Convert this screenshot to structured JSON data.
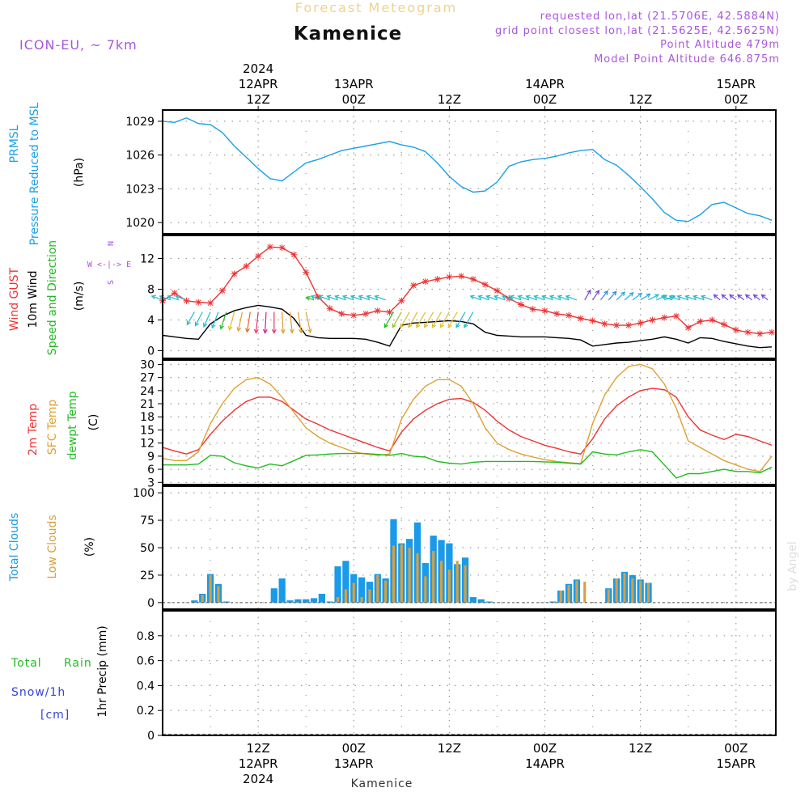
{
  "header": {
    "product": "Forecast Meteogram",
    "location": "Kamenice",
    "model": "ICON-EU, ~ 7km",
    "requested": "requested lon,lat (21.5706E, 42.5884N)",
    "gridpoint": "grid point closest lon,lat (21.5625E, 42.5625N)",
    "point_alt": "Point Altitude 479m",
    "model_alt": "Model Point Altitude 646.875m",
    "bottom_label": "Kamenice",
    "watermark": "by Angel"
  },
  "colors": {
    "pressure": "#1aa0e8",
    "gust": "#ee3333",
    "wind": "#000000",
    "dir": "#22bb22",
    "temp": "#ee3333",
    "sfc": "#e0a030",
    "dewpt": "#22bb22",
    "total_clouds": "#1a9ae8",
    "low_clouds": "#d8a040",
    "purple": "#aa55dd",
    "rain": "#22bb22",
    "snow": "#3344dd"
  },
  "top_axis": [
    {
      "x": 12,
      "lines": [
        "2024",
        "12APR",
        "12Z"
      ]
    },
    {
      "x": 24,
      "lines": [
        "13APR",
        "00Z"
      ]
    },
    {
      "x": 36,
      "lines": [
        "12Z"
      ]
    },
    {
      "x": 48,
      "lines": [
        "14APR",
        "00Z"
      ]
    },
    {
      "x": 60,
      "lines": [
        "12Z"
      ]
    },
    {
      "x": 72,
      "lines": [
        "15APR",
        "00Z"
      ]
    }
  ],
  "bottom_axis": [
    {
      "x": 12,
      "lines": [
        "12Z",
        "12APR",
        "2024"
      ]
    },
    {
      "x": 24,
      "lines": [
        "00Z",
        "13APR"
      ]
    },
    {
      "x": 36,
      "lines": [
        "12Z"
      ]
    },
    {
      "x": 48,
      "lines": [
        "00Z",
        "14APR"
      ]
    },
    {
      "x": 60,
      "lines": [
        "12Z"
      ]
    },
    {
      "x": 72,
      "lines": [
        "00Z",
        "15APR"
      ]
    }
  ],
  "chart_data": [
    {
      "type": "line",
      "panel": "pressure",
      "ylabel": [
        "PRMSL",
        "Pressure Reduced to MSL",
        "(hPa)"
      ],
      "ylim": [
        1019,
        1030
      ],
      "yticks": [
        1020,
        1023,
        1026,
        1029
      ],
      "x_unit": "hours from 12APR 00Z",
      "xlim": [
        0,
        77
      ],
      "series": [
        {
          "name": "PRMSL",
          "x": [
            0,
            1.5,
            3,
            4.5,
            6,
            7.5,
            9,
            10.5,
            12,
            13.5,
            15,
            16.5,
            18,
            19.5,
            21,
            22.5,
            24,
            25.5,
            27,
            28.5,
            30,
            31.5,
            33,
            34.5,
            36,
            37.5,
            39,
            40.5,
            42,
            43.5,
            45,
            46.5,
            48,
            49.5,
            51,
            52.5,
            54,
            55.5,
            57,
            58.5,
            60,
            61.5,
            63,
            64.5,
            66,
            67.5,
            69,
            70.5,
            72,
            73.5,
            75,
            76.5
          ],
          "values": [
            1029.0,
            1028.9,
            1029.3,
            1028.8,
            1028.7,
            1028.0,
            1026.8,
            1025.8,
            1024.8,
            1023.9,
            1023.7,
            1024.5,
            1025.3,
            1025.6,
            1026.0,
            1026.4,
            1026.6,
            1026.8,
            1027.0,
            1027.2,
            1026.9,
            1026.7,
            1026.3,
            1025.3,
            1024.1,
            1023.2,
            1022.7,
            1022.8,
            1023.6,
            1025.0,
            1025.4,
            1025.6,
            1025.7,
            1025.9,
            1026.2,
            1026.4,
            1026.5,
            1025.6,
            1025.1,
            1024.2,
            1023.2,
            1022.1,
            1020.9,
            1020.2,
            1020.1,
            1020.7,
            1021.6,
            1021.8,
            1021.3,
            1020.8,
            1020.6,
            1020.2
          ]
        }
      ]
    },
    {
      "type": "line",
      "panel": "wind",
      "ylabel": [
        "Wind GUST",
        "10m Wind",
        "Speed and Direction",
        "(m/s)"
      ],
      "compass": [
        "N",
        "W <-|-> E",
        "S"
      ],
      "ylim": [
        -1,
        15
      ],
      "yticks": [
        0,
        4,
        8,
        12
      ],
      "series": [
        {
          "name": "Wind GUST",
          "x": [
            0,
            1.5,
            3,
            4.5,
            6,
            7.5,
            9,
            10.5,
            12,
            13.5,
            15,
            16.5,
            18,
            19.5,
            21,
            22.5,
            24,
            25.5,
            27,
            28.5,
            30,
            31.5,
            33,
            34.5,
            36,
            37.5,
            39,
            40.5,
            42,
            43.5,
            45,
            46.5,
            48,
            49.5,
            51,
            52.5,
            54,
            55.5,
            57,
            58.5,
            60,
            61.5,
            63,
            64.5,
            66,
            67.5,
            69,
            70.5,
            72,
            73.5,
            75,
            76.5
          ],
          "values": [
            6.5,
            7.5,
            6.5,
            6.3,
            6.2,
            7.8,
            10.0,
            11.0,
            12.3,
            13.5,
            13.4,
            12.5,
            10.2,
            7.0,
            5.5,
            4.8,
            4.6,
            4.8,
            5.2,
            5.0,
            6.5,
            8.5,
            9.0,
            9.3,
            9.6,
            9.7,
            9.3,
            8.6,
            7.8,
            6.8,
            6.0,
            5.4,
            5.2,
            4.8,
            4.6,
            4.2,
            3.9,
            3.5,
            3.3,
            3.3,
            3.6,
            4.0,
            4.3,
            4.5,
            3.0,
            3.8,
            4.0,
            3.4,
            2.7,
            2.4,
            2.2,
            2.4
          ]
        },
        {
          "name": "10m Wind",
          "x": [
            0,
            1.5,
            3,
            4.5,
            6,
            7.5,
            9,
            10.5,
            12,
            13.5,
            15,
            16.5,
            18,
            19.5,
            21,
            22.5,
            24,
            25.5,
            27,
            28.5,
            30,
            31.5,
            33,
            34.5,
            36,
            37.5,
            39,
            40.5,
            42,
            43.5,
            45,
            46.5,
            48,
            49.5,
            51,
            52.5,
            54,
            55.5,
            57,
            58.5,
            60,
            61.5,
            63,
            64.5,
            66,
            67.5,
            69,
            70.5,
            72,
            73.5,
            75,
            76.5
          ],
          "values": [
            2.0,
            1.8,
            1.6,
            1.5,
            3.5,
            4.5,
            5.2,
            5.6,
            5.9,
            5.7,
            5.4,
            4.2,
            2.0,
            1.7,
            1.6,
            1.6,
            1.6,
            1.5,
            1.1,
            0.6,
            3.3,
            3.6,
            3.7,
            3.8,
            3.9,
            3.8,
            3.5,
            2.4,
            2.0,
            1.9,
            1.8,
            1.8,
            1.8,
            1.7,
            1.6,
            1.4,
            0.6,
            0.8,
            1.0,
            1.1,
            1.3,
            1.5,
            1.8,
            1.5,
            1.0,
            1.7,
            1.6,
            1.2,
            0.9,
            0.6,
            0.4,
            0.5
          ]
        }
      ]
    },
    {
      "type": "line",
      "panel": "temperature",
      "ylabel": [
        "2m Temp",
        "SFC Temp",
        "dewpt Temp",
        "(C)"
      ],
      "ylim": [
        2.5,
        31
      ],
      "yticks": [
        3,
        6,
        9,
        12,
        15,
        18,
        21,
        24,
        27,
        30
      ],
      "series": [
        {
          "name": "2m Temp",
          "x": [
            0,
            1.5,
            3,
            4.5,
            6,
            7.5,
            9,
            10.5,
            12,
            13.5,
            15,
            16.5,
            18,
            19.5,
            21,
            22.5,
            24,
            25.5,
            27,
            28.5,
            30,
            31.5,
            33,
            34.5,
            36,
            37.5,
            39,
            40.5,
            42,
            43.5,
            45,
            46.5,
            48,
            49.5,
            51,
            52.5,
            54,
            55.5,
            57,
            58.5,
            60,
            61.5,
            63,
            64.5,
            66,
            67.5,
            69,
            70.5,
            72,
            73.5,
            75,
            76.5
          ],
          "values": [
            11.0,
            10.2,
            9.5,
            10.5,
            14.0,
            17.0,
            19.5,
            21.5,
            22.5,
            22.5,
            21.5,
            19.5,
            17.5,
            16.3,
            15.0,
            14.0,
            13.0,
            12.0,
            11.0,
            10.2,
            14.5,
            17.5,
            19.5,
            21.0,
            22.0,
            22.2,
            21.3,
            19.5,
            17.0,
            15.0,
            13.5,
            12.5,
            11.5,
            10.8,
            10.0,
            9.5,
            13.0,
            17.5,
            20.5,
            22.5,
            24.0,
            24.5,
            24.2,
            22.5,
            18.0,
            15.0,
            13.8,
            12.8,
            14.0,
            13.5,
            12.5,
            11.5
          ]
        },
        {
          "name": "SFC Temp",
          "x": [
            0,
            1.5,
            3,
            4.5,
            6,
            7.5,
            9,
            10.5,
            12,
            13.5,
            15,
            16.5,
            18,
            19.5,
            21,
            22.5,
            24,
            25.5,
            27,
            28.5,
            30,
            31.5,
            33,
            34.5,
            36,
            37.5,
            39,
            40.5,
            42,
            43.5,
            45,
            46.5,
            48,
            49.5,
            51,
            52.5,
            54,
            55.5,
            57,
            58.5,
            60,
            61.5,
            63,
            64.5,
            66,
            67.5,
            69,
            70.5,
            72,
            73.5,
            75,
            76.5
          ],
          "values": [
            8.5,
            8.0,
            8.0,
            10.0,
            16.5,
            21.0,
            24.5,
            26.5,
            27.0,
            25.5,
            22.5,
            19.0,
            15.5,
            13.5,
            12.0,
            11.0,
            10.0,
            9.5,
            9.2,
            9.5,
            17.5,
            22.0,
            25.0,
            26.5,
            26.5,
            25.0,
            21.0,
            15.5,
            12.0,
            10.5,
            9.5,
            8.8,
            8.2,
            7.8,
            7.5,
            7.3,
            16.5,
            23.0,
            27.0,
            29.5,
            30.0,
            29.0,
            25.5,
            20.0,
            12.5,
            11.0,
            9.5,
            8.0,
            7.0,
            6.0,
            5.5,
            9.0
          ]
        },
        {
          "name": "dewpt Temp",
          "x": [
            0,
            1.5,
            3,
            4.5,
            6,
            7.5,
            9,
            10.5,
            12,
            13.5,
            15,
            16.5,
            18,
            19.5,
            21,
            22.5,
            24,
            25.5,
            27,
            28.5,
            30,
            31.5,
            33,
            34.5,
            36,
            37.5,
            39,
            40.5,
            42,
            43.5,
            45,
            46.5,
            48,
            49.5,
            51,
            52.5,
            54,
            55.5,
            57,
            58.5,
            60,
            61.5,
            63,
            64.5,
            66,
            67.5,
            69,
            70.5,
            72,
            73.5,
            75,
            76.5
          ],
          "values": [
            7.0,
            7.0,
            7.0,
            7.2,
            9.2,
            9.0,
            7.5,
            6.8,
            6.3,
            7.2,
            6.8,
            8.0,
            9.2,
            9.3,
            9.5,
            9.6,
            9.6,
            9.6,
            9.4,
            9.2,
            9.6,
            9.0,
            8.8,
            7.8,
            7.4,
            7.2,
            7.6,
            7.8,
            7.8,
            7.8,
            7.8,
            7.8,
            7.7,
            7.6,
            7.4,
            7.2,
            10.0,
            9.5,
            9.3,
            10.0,
            10.5,
            10.0,
            7.0,
            4.0,
            5.0,
            5.0,
            5.5,
            6.0,
            5.5,
            5.5,
            5.2,
            6.5
          ]
        }
      ]
    },
    {
      "type": "bar",
      "panel": "clouds",
      "ylabel": [
        "Total Clouds",
        "Low Clouds",
        "(%)"
      ],
      "ylim": [
        -6,
        106
      ],
      "yticks": [
        0,
        25,
        50,
        75,
        100
      ],
      "series": [
        {
          "name": "Total Clouds",
          "x": [
            4,
            5,
            6,
            7,
            8,
            14,
            15,
            16,
            17,
            18,
            19,
            20,
            21,
            22,
            23,
            24,
            25,
            26,
            27,
            28,
            29,
            30,
            31,
            32,
            33,
            34,
            35,
            36,
            37,
            38,
            39,
            40,
            41,
            49,
            50,
            51,
            52,
            56,
            57,
            58,
            59,
            60,
            61
          ],
          "values": [
            2,
            8,
            26,
            17,
            1,
            13,
            22,
            2,
            3,
            3,
            4,
            8,
            1,
            33,
            38,
            26,
            23,
            19,
            26,
            22,
            76,
            54,
            58,
            73,
            36,
            61,
            57,
            54,
            35,
            41,
            5,
            3,
            1,
            1,
            11,
            17,
            21,
            13,
            22,
            28,
            25,
            21,
            18
          ]
        },
        {
          "name": "Low Clouds",
          "x": [
            5,
            6,
            7,
            22,
            23,
            24,
            25,
            26,
            27,
            28,
            29,
            30,
            31,
            32,
            33,
            34,
            35,
            36,
            37,
            38,
            50,
            51,
            52,
            53,
            56,
            57,
            58,
            59,
            60,
            61
          ],
          "values": [
            7,
            25,
            15,
            5,
            12,
            18,
            5,
            12,
            25,
            20,
            52,
            53,
            50,
            45,
            24,
            47,
            38,
            30,
            38,
            34,
            11,
            16,
            20,
            19,
            12,
            22,
            27,
            22,
            20,
            18
          ]
        }
      ]
    },
    {
      "type": "bar",
      "panel": "precip",
      "ylabel": [
        "1hr Precip (mm)"
      ],
      "legend": [
        "Total",
        "Rain",
        "Snow/1h",
        "[cm]"
      ],
      "ylim": [
        0,
        1
      ],
      "yticks": [
        0,
        0.2,
        0.4,
        0.6,
        0.8
      ],
      "series": []
    }
  ]
}
